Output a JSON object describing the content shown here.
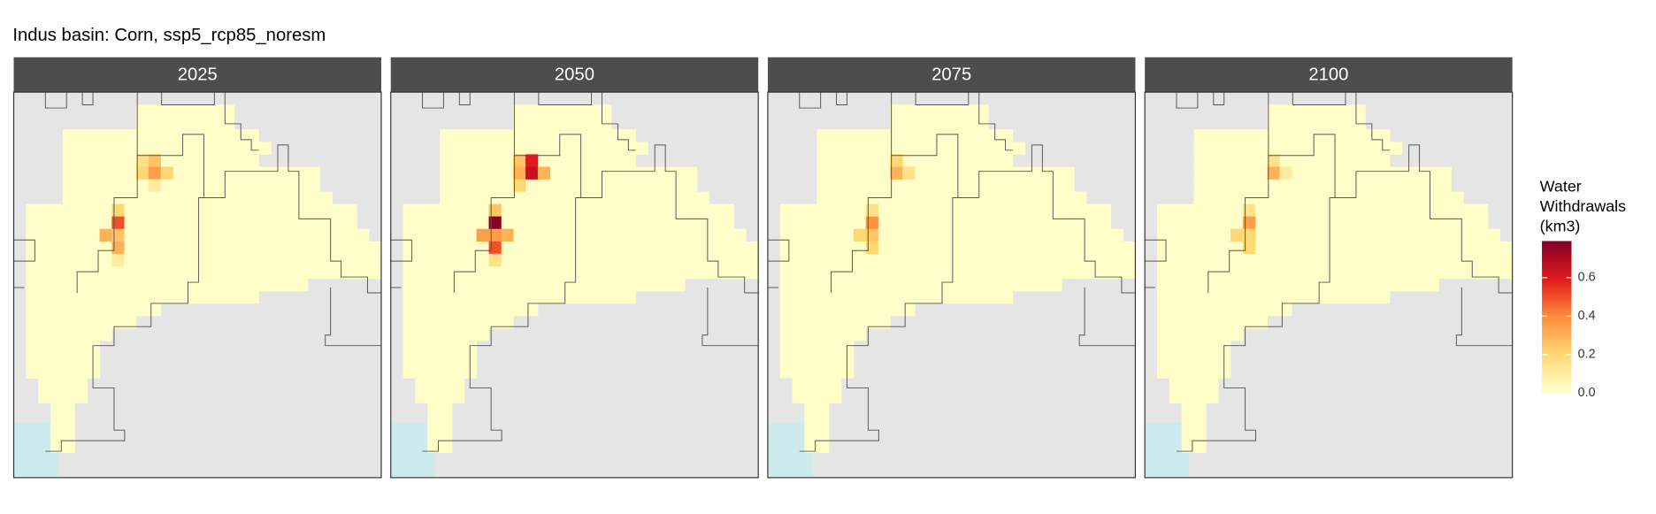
{
  "chart_data": {
    "type": "raster-map",
    "title": "Indus basin: Corn, ssp5_rcp85_noresm",
    "legend_title": [
      "Water",
      "Withdrawals",
      "(km3)"
    ],
    "colors": [
      "#ffffcc",
      "#fed976",
      "#fd8d3c",
      "#e31a1c",
      "#800026"
    ],
    "lim": [
      0,
      0.79
    ],
    "ticks": [
      {
        "value": 0,
        "label": "0.0"
      },
      0.2,
      0.4,
      0.6
    ],
    "panels": [
      {
        "label": "2025",
        "base_value": 0.01,
        "cells": [
          {
            "row": 5,
            "col": 10,
            "value": 0.15
          },
          {
            "row": 5,
            "col": 11,
            "value": 0.25
          },
          {
            "row": 6,
            "col": 10,
            "value": 0.2
          },
          {
            "row": 6,
            "col": 11,
            "value": 0.35
          },
          {
            "row": 6,
            "col": 12,
            "value": 0.2
          },
          {
            "row": 7,
            "col": 11,
            "value": 0.1
          },
          {
            "row": 9,
            "col": 8,
            "value": 0.2
          },
          {
            "row": 10,
            "col": 8,
            "value": 0.5
          },
          {
            "row": 11,
            "col": 7,
            "value": 0.3
          },
          {
            "row": 11,
            "col": 8,
            "value": 0.25
          },
          {
            "row": 12,
            "col": 8,
            "value": 0.3
          },
          {
            "row": 13,
            "col": 8,
            "value": 0.1
          }
        ]
      },
      {
        "label": "2050",
        "base_value": 0.01,
        "cells": [
          {
            "row": 5,
            "col": 10,
            "value": 0.25
          },
          {
            "row": 5,
            "col": 11,
            "value": 0.6
          },
          {
            "row": 6,
            "col": 10,
            "value": 0.3
          },
          {
            "row": 6,
            "col": 11,
            "value": 0.65
          },
          {
            "row": 6,
            "col": 12,
            "value": 0.3
          },
          {
            "row": 7,
            "col": 10,
            "value": 0.2
          },
          {
            "row": 9,
            "col": 8,
            "value": 0.25
          },
          {
            "row": 10,
            "col": 8,
            "value": 0.78
          },
          {
            "row": 11,
            "col": 7,
            "value": 0.35
          },
          {
            "row": 11,
            "col": 8,
            "value": 0.35
          },
          {
            "row": 11,
            "col": 9,
            "value": 0.3
          },
          {
            "row": 12,
            "col": 8,
            "value": 0.5
          },
          {
            "row": 13,
            "col": 8,
            "value": 0.15
          }
        ]
      },
      {
        "label": "2075",
        "base_value": 0.01,
        "cells": [
          {
            "row": 5,
            "col": 10,
            "value": 0.2
          },
          {
            "row": 6,
            "col": 10,
            "value": 0.3
          },
          {
            "row": 6,
            "col": 11,
            "value": 0.15
          },
          {
            "row": 9,
            "col": 8,
            "value": 0.15
          },
          {
            "row": 10,
            "col": 8,
            "value": 0.38
          },
          {
            "row": 11,
            "col": 7,
            "value": 0.2
          },
          {
            "row": 11,
            "col": 8,
            "value": 0.25
          },
          {
            "row": 12,
            "col": 8,
            "value": 0.2
          }
        ]
      },
      {
        "label": "2100",
        "base_value": 0.01,
        "cells": [
          {
            "row": 5,
            "col": 10,
            "value": 0.15
          },
          {
            "row": 6,
            "col": 10,
            "value": 0.3
          },
          {
            "row": 6,
            "col": 11,
            "value": 0.1
          },
          {
            "row": 9,
            "col": 8,
            "value": 0.15
          },
          {
            "row": 10,
            "col": 8,
            "value": 0.35
          },
          {
            "row": 11,
            "col": 7,
            "value": 0.2
          },
          {
            "row": 11,
            "col": 8,
            "value": 0.2
          },
          {
            "row": 12,
            "col": 8,
            "value": 0.2
          }
        ]
      }
    ]
  }
}
